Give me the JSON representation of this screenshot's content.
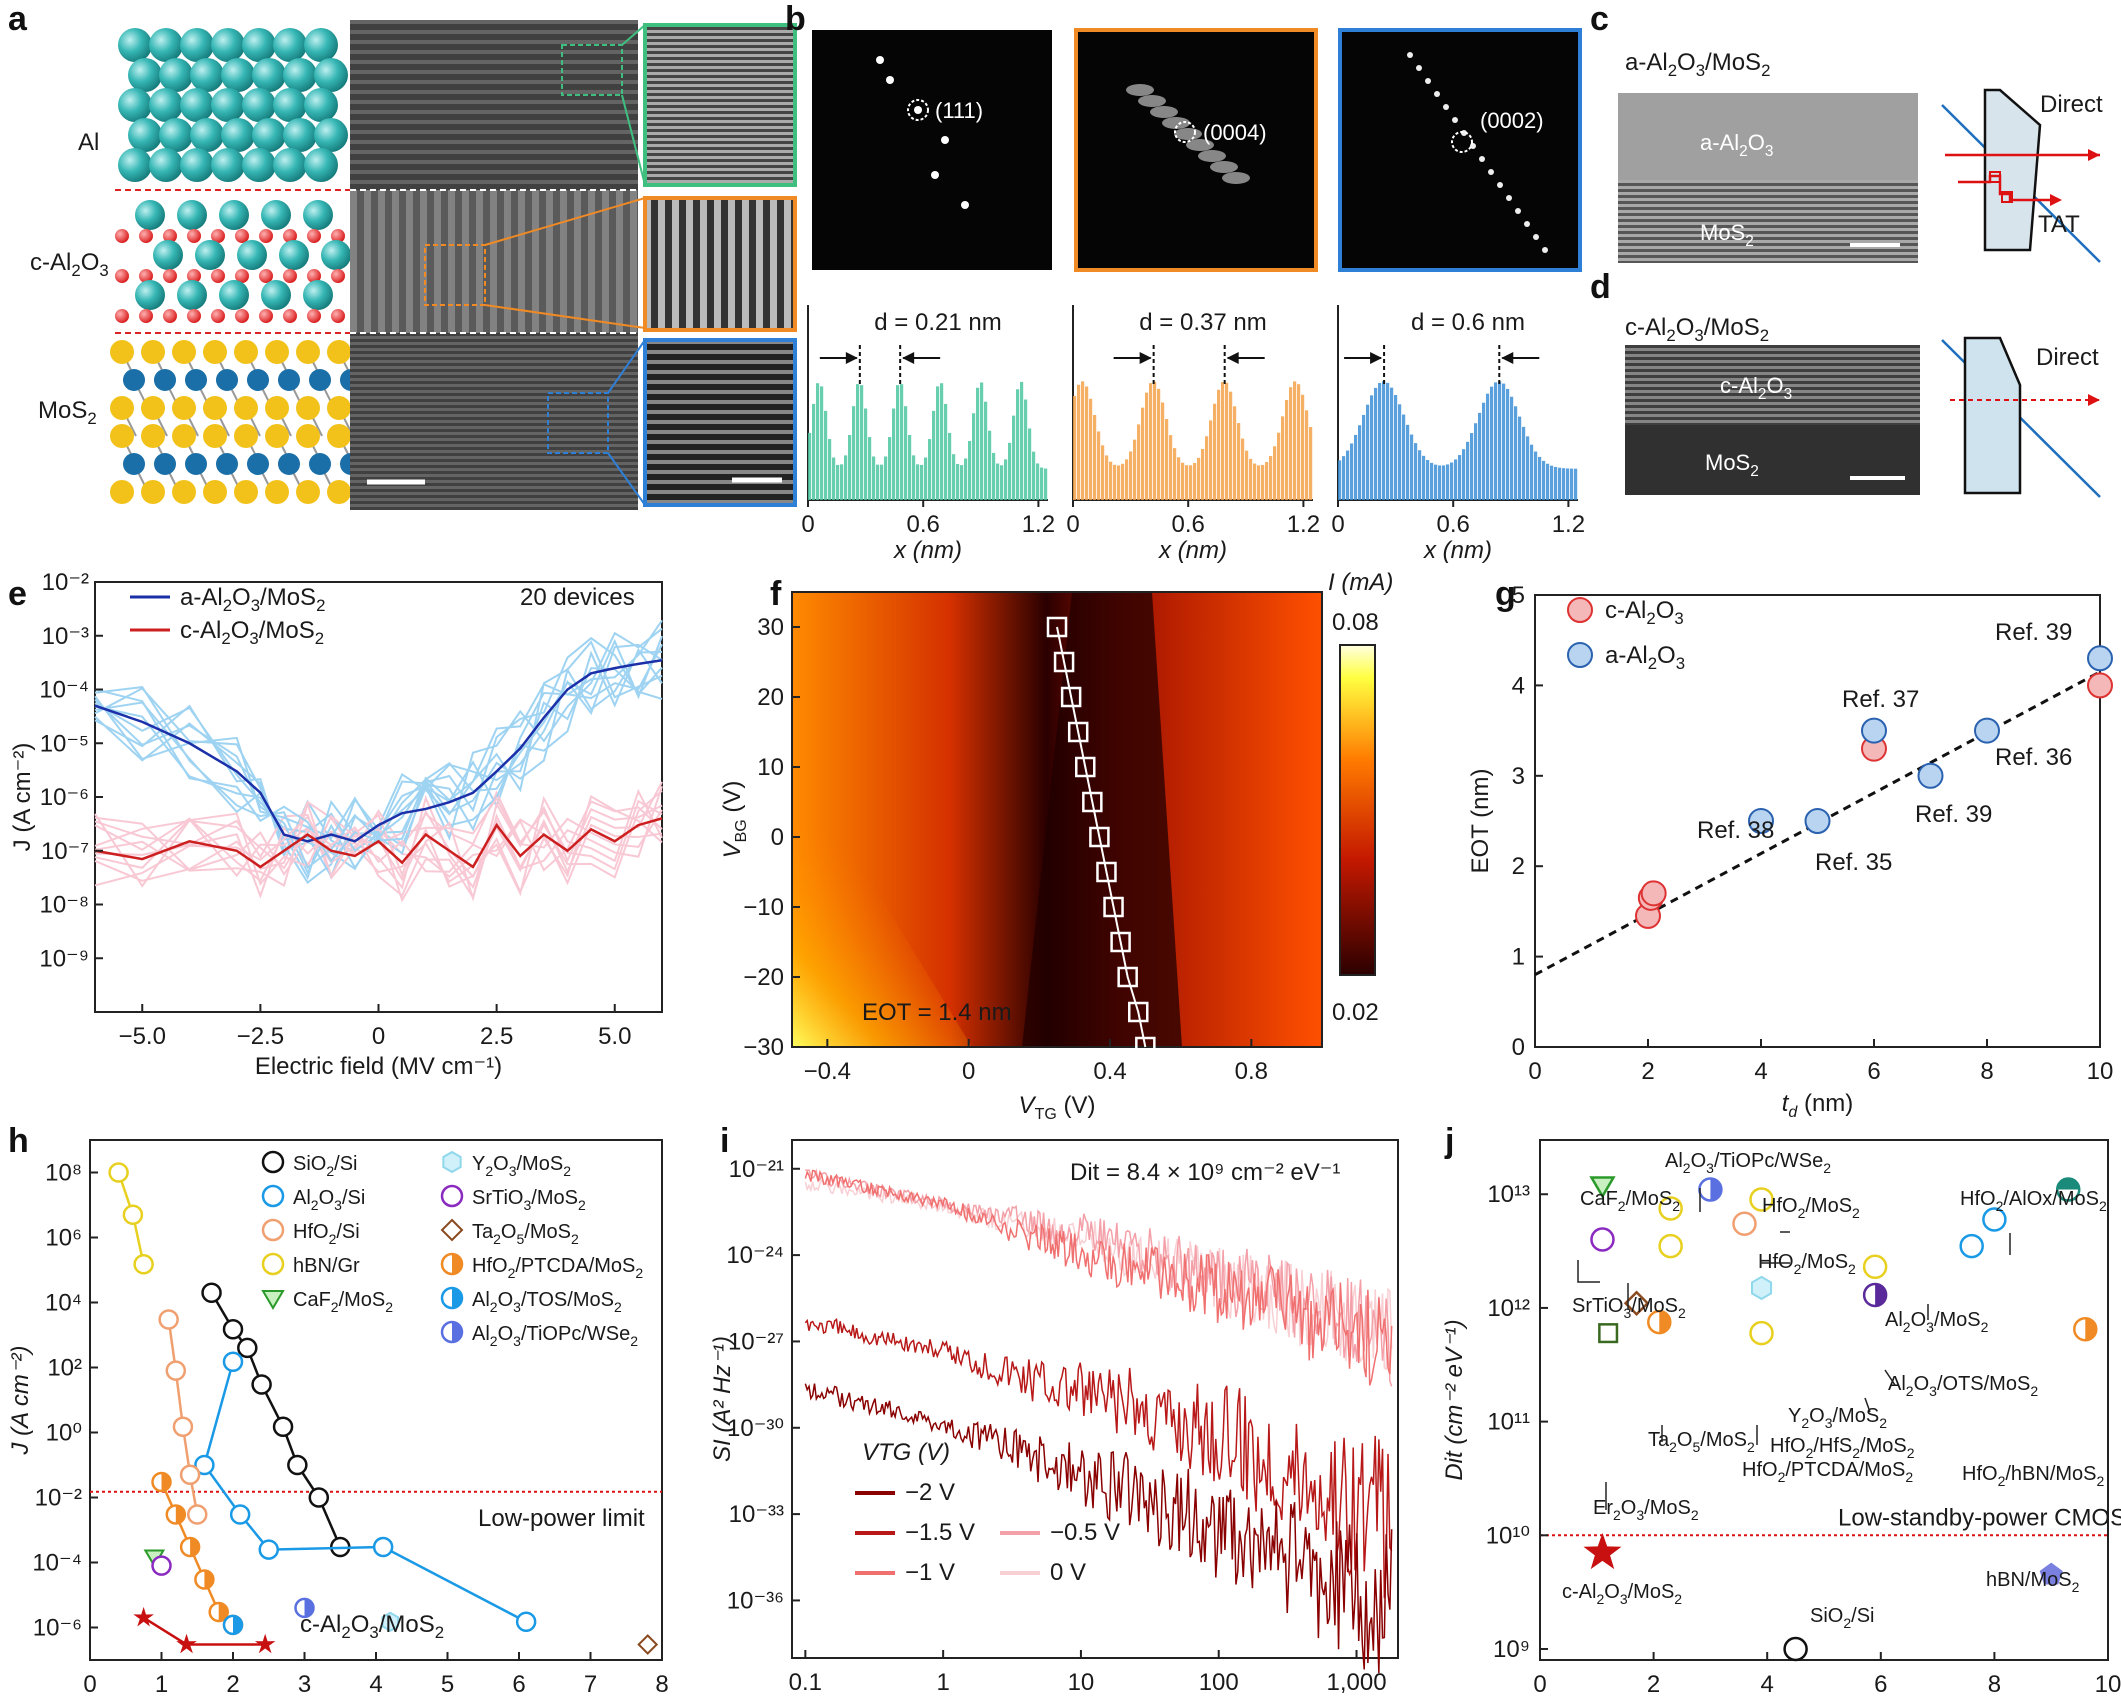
{
  "panels": {
    "a": {
      "label": "a",
      "layers": [
        "Al",
        "c-Al2O3",
        "MoS2"
      ],
      "layer_html": [
        "Al",
        "c-Al<tspan dy='6' font-size='16'>2</tspan><tspan dy='-6'>O</tspan><tspan dy='6' font-size='16'>3</tspan>",
        "MoS<tspan dy='6' font-size='16'>2</tspan>"
      ]
    },
    "b": {
      "label": "b",
      "fft_labels": [
        "(111)",
        "(0004)",
        "(0002)"
      ],
      "d_labels": [
        "d = 0.21 nm",
        "d = 0.37 nm",
        "d = 0.6 nm"
      ],
      "xlabel": "x (nm)",
      "xticks": [
        "0",
        "0.6",
        "1.2"
      ],
      "colors": [
        "#4cc6a0",
        "#f5a24a",
        "#3d8fd6"
      ]
    },
    "c": {
      "label": "c",
      "title": "a-Al2O3/MoS2",
      "top_layer": "a-Al2O3",
      "bottom_layer": "MoS2",
      "direct": "Direct",
      "tat": "TAT"
    },
    "d": {
      "label": "d",
      "title": "c-Al2O3/MoS2",
      "top_layer": "c-Al2O3",
      "bottom_layer": "MoS2",
      "direct": "Direct"
    },
    "e": {
      "label": "e",
      "devices": "20 devices",
      "legend": [
        "a-Al2O3/MoS2",
        "c-Al2O3/MoS2"
      ],
      "xlabel": "Electric field (MV cm⁻¹)",
      "ylabel": "J (A cm⁻²)",
      "xticks": [
        "−5.0",
        "−2.5",
        "0",
        "2.5",
        "5.0"
      ],
      "yticks": [
        "10⁻²",
        "10⁻³",
        "10⁻⁴",
        "10⁻⁵",
        "10⁻⁶",
        "10⁻⁷",
        "10⁻⁸",
        "10⁻⁹"
      ],
      "colors": {
        "a": "#1a2fa8",
        "a_light": "#9fd3f2",
        "c": "#cc1f1f",
        "c_light": "#f8c9d4"
      }
    },
    "f": {
      "label": "f",
      "annotation": "EOT = 1.4 nm",
      "colorbar_title": "I (mA)",
      "colorbar_max": "0.08",
      "colorbar_min": "0.02",
      "xlabel": "VTG (V)",
      "ylabel": "VBG (V)",
      "xticks": [
        "−0.4",
        "0",
        "0.4",
        "0.8"
      ],
      "yticks": [
        "30",
        "20",
        "10",
        "0",
        "−10",
        "−20",
        "−30"
      ]
    },
    "g": {
      "label": "g",
      "legend": [
        "c-Al2O3",
        "a-Al2O3"
      ],
      "refs": [
        "Ref. 39",
        "Ref. 37",
        "Ref. 36",
        "Ref. 38",
        "Ref. 39",
        "Ref. 35"
      ],
      "xlabel": "td (nm)",
      "ylabel": "EOT (nm)",
      "xticks": [
        "0",
        "2",
        "4",
        "6",
        "8",
        "10"
      ],
      "yticks": [
        "0",
        "1",
        "2",
        "3",
        "4",
        "5"
      ]
    },
    "h": {
      "label": "h",
      "xlabel": "EOT (nm)",
      "ylabel": "J (A cm⁻²)",
      "xticks": [
        "0",
        "1",
        "2",
        "3",
        "4",
        "5",
        "6",
        "7",
        "8"
      ],
      "yticks": [
        "10⁸",
        "10⁶",
        "10⁴",
        "10²",
        "10⁰",
        "10⁻²",
        "10⁻⁴",
        "10⁻⁶"
      ],
      "limit_label": "Low-power limit",
      "star_label": "c-Al2O3/MoS2",
      "legend": [
        "SiO2/Si",
        "Al2O3/Si",
        "HfO2/Si",
        "hBN/Gr",
        "CaF2/MoS2",
        "Y2O3/MoS2",
        "SrTiO3/MoS2",
        "Ta2O5/MoS2",
        "HfO2/PTCDA/MoS2",
        "Al2O3/TOS/MoS2",
        "Al2O3/TiOPc/WSe2"
      ]
    },
    "i": {
      "label": "i",
      "title": "Dit = 8.4 × 10⁹ cm⁻² eV⁻¹",
      "xlabel": "Frequency (Hz)",
      "ylabel": "SI (A² Hz⁻¹)",
      "xticks": [
        "0.1",
        "1",
        "10",
        "100",
        "1,000"
      ],
      "yticks": [
        "10⁻²¹",
        "10⁻²⁴",
        "10⁻²⁷",
        "10⁻³⁰",
        "10⁻³³",
        "10⁻³⁶"
      ],
      "legend_title": "VTG (V)",
      "legend": [
        "−2 V",
        "−1.5 V",
        "−1 V",
        "−0.5 V",
        "0 V"
      ]
    },
    "j": {
      "label": "j",
      "xlabel": "EOT (nm)",
      "ylabel": "Dit (cm⁻² eV⁻¹)",
      "xticks": [
        "0",
        "2",
        "4",
        "6",
        "8",
        "10"
      ],
      "yticks": [
        "10¹³",
        "10¹²",
        "10¹¹",
        "10¹⁰",
        "10⁹"
      ],
      "limit_label": "Low-standby-power CMOS",
      "labels": [
        "CaF2/MoS2",
        "Al2O3/TiOPc/WSe2",
        "HfO2/MoS2",
        "HfO2/MoS2",
        "HfO2/AlOx/MoS2",
        "SrTiO3/MoS2",
        "Al2O3/MoS2",
        "Al2O3/OTS/MoS2",
        "Y2O3/MoS2",
        "Ta2O5/MoS2",
        "HfO2/HfS2/MoS2",
        "HfO2/PTCDA/MoS2",
        "HfO2/hBN/MoS2",
        "Er2O3/MoS2",
        "c-Al2O3/MoS2",
        "hBN/MoS2",
        "SiO2/Si"
      ]
    }
  },
  "chart_data": [
    {
      "id": "b",
      "type": "bar",
      "xlabel": "x (nm)",
      "xlim": [
        0,
        1.25
      ],
      "series": [
        {
          "name": "c-Al2O3 (green)",
          "period_nm": 0.21,
          "peaks_nm": [
            0.06,
            0.27,
            0.48,
            0.69,
            0.9,
            1.11
          ]
        },
        {
          "name": "c-Al2O3 (orange)",
          "period_nm": 0.37,
          "peaks_nm": [
            0.05,
            0.42,
            0.79,
            1.16
          ]
        },
        {
          "name": "MoS2 (blue)",
          "period_nm": 0.6,
          "peaks_nm": [
            0.24,
            0.84
          ]
        }
      ]
    },
    {
      "id": "e",
      "type": "line",
      "yscale": "log",
      "xlabel": "Electric field (MV cm⁻¹)",
      "ylabel": "J (A cm⁻²)",
      "xlim": [
        -6,
        6
      ],
      "ylim": [
        1e-10,
        0.01
      ],
      "series": [
        {
          "name": "a-Al2O3/MoS2",
          "x": [
            -6,
            -5,
            -4,
            -3,
            -2.5,
            -2,
            -1.5,
            -1,
            -0.5,
            0,
            0.5,
            1,
            1.5,
            2,
            2.5,
            3,
            3.5,
            4,
            4.5,
            5,
            5.5,
            6
          ],
          "y": [
            5e-05,
            2.5e-05,
            1e-05,
            3e-06,
            1.2e-06,
            2e-07,
            1.5e-07,
            2e-07,
            1.5e-07,
            3e-07,
            5e-07,
            6e-07,
            8e-07,
            1.2e-06,
            3e-06,
            8e-06,
            3e-05,
            0.0001,
            0.0002,
            0.00025,
            0.0003,
            0.00035
          ]
        },
        {
          "name": "c-Al2O3/MoS2",
          "x": [
            -6,
            -5,
            -4,
            -3,
            -2.5,
            -2,
            -1.5,
            -1,
            -0.5,
            0,
            0.5,
            1,
            1.5,
            2,
            2.5,
            3,
            3.5,
            4,
            4.5,
            5,
            5.5,
            6
          ],
          "y": [
            1e-07,
            7e-08,
            1.5e-07,
            1e-07,
            5e-08,
            1e-07,
            2e-07,
            1e-07,
            8e-08,
            1.5e-07,
            6e-08,
            2e-07,
            1e-07,
            5e-08,
            3e-07,
            8e-08,
            2e-07,
            1e-07,
            2.5e-07,
            1.5e-07,
            3e-07,
            4e-07
          ]
        }
      ]
    },
    {
      "id": "f",
      "type": "heatmap",
      "xlabel": "VTG (V)",
      "ylabel": "VBG (V)",
      "xlim": [
        -0.5,
        1.0
      ],
      "ylim": [
        -30,
        35
      ],
      "colorbar": {
        "label": "I (mA)",
        "min": 0.02,
        "max": 0.08
      },
      "minimum_line": {
        "x": [
          0.5,
          0.48,
          0.45,
          0.43,
          0.41,
          0.39,
          0.37,
          0.35,
          0.33,
          0.31,
          0.29,
          0.27,
          0.25
        ],
        "y": [
          -30,
          -25,
          -20,
          -15,
          -10,
          -5,
          0,
          5,
          10,
          15,
          20,
          25,
          30
        ]
      }
    },
    {
      "id": "g",
      "type": "scatter",
      "xlabel": "td (nm)",
      "ylabel": "EOT (nm)",
      "xlim": [
        0,
        10
      ],
      "ylim": [
        0,
        5
      ],
      "series": [
        {
          "name": "c-Al2O3",
          "x": [
            2,
            2.05,
            2.1,
            6,
            10
          ],
          "y": [
            1.45,
            1.65,
            1.7,
            3.3,
            4.0
          ]
        },
        {
          "name": "a-Al2O3",
          "x": [
            4,
            5,
            6,
            7,
            8,
            10
          ],
          "y": [
            2.5,
            2.5,
            3.5,
            3.0,
            3.5,
            4.3
          ]
        }
      ],
      "fit": {
        "x": [
          0,
          10
        ],
        "y": [
          0.8,
          4.15
        ]
      }
    },
    {
      "id": "h",
      "type": "scatter",
      "yscale": "log",
      "xlabel": "EOT (nm)",
      "ylabel": "J (A cm⁻²)",
      "xlim": [
        0,
        8
      ],
      "ylim": [
        1e-07,
        1000000000.0
      ],
      "limit": 0.015,
      "series": [
        {
          "name": "SiO2/Si",
          "x": [
            1.7,
            2.0,
            2.2,
            2.4,
            2.7,
            2.9,
            3.2,
            3.5
          ],
          "y": [
            20000,
            1500,
            400,
            30,
            1.5,
            0.1,
            0.01,
            0.0003
          ]
        },
        {
          "name": "Al2O3/Si",
          "x": [
            2.0,
            1.6,
            2.1,
            2.5,
            4.1,
            6.1
          ],
          "y": [
            150,
            0.1,
            0.003,
            0.00025,
            0.0003,
            1.5e-06
          ]
        },
        {
          "name": "HfO2/Si",
          "x": [
            1.1,
            1.2,
            1.3,
            1.4,
            1.5
          ],
          "y": [
            3000,
            80,
            1.5,
            0.05,
            0.003
          ]
        },
        {
          "name": "hBN/Gr",
          "x": [
            0.4,
            0.6,
            0.75
          ],
          "y": [
            100000000.0,
            5000000.0,
            150000.0
          ]
        },
        {
          "name": "HfO2/PTCDA/MoS2",
          "x": [
            1.0,
            1.2,
            1.4,
            1.6,
            1.8,
            2.0
          ],
          "y": [
            0.03,
            0.003,
            0.0003,
            3e-05,
            3e-06,
            1.2e-06
          ]
        },
        {
          "name": "CaF2/MoS2",
          "x": [
            0.9
          ],
          "y": [
            0.00015
          ]
        },
        {
          "name": "SrTiO3/MoS2",
          "x": [
            1.0
          ],
          "y": [
            8e-05
          ]
        },
        {
          "name": "Al2O3/TOS/MoS2",
          "x": [
            2.0
          ],
          "y": [
            1.2e-06
          ]
        },
        {
          "name": "Al2O3/TiOPc/WSe2",
          "x": [
            3.0
          ],
          "y": [
            4e-06
          ]
        },
        {
          "name": "Y2O3/MoS2",
          "x": [
            4.2
          ],
          "y": [
            1.5e-06
          ]
        },
        {
          "name": "Ta2O5/MoS2",
          "x": [
            7.8
          ],
          "y": [
            3e-07
          ]
        },
        {
          "name": "c-Al2O3/MoS2",
          "x": [
            0.75,
            1.35,
            2.45
          ],
          "y": [
            2e-06,
            3e-07,
            3e-07
          ]
        }
      ]
    },
    {
      "id": "i",
      "type": "line",
      "xscale": "log",
      "yscale": "log",
      "xlabel": "Frequency (Hz)",
      "ylabel": "SI (A² Hz⁻¹)",
      "xlim": [
        0.08,
        2000
      ],
      "ylim": [
        1e-38,
        1e-20
      ],
      "series": [
        {
          "name": "−2 V",
          "x": [
            0.1,
            1,
            10,
            100,
            1000
          ],
          "y": [
            5e-29,
            3e-30,
            3e-31,
            3e-32,
            1e-33
          ]
        },
        {
          "name": "−1.5 V",
          "x": [
            0.1,
            1,
            10,
            100,
            1000
          ],
          "y": [
            1e-26,
            1e-27,
            2e-28,
            5e-29,
            1e-30
          ]
        },
        {
          "name": "−1 V",
          "x": [
            0.1,
            1,
            10,
            100,
            1000
          ],
          "y": [
            1e-21,
            1e-22,
            5e-24,
            1e-24,
            1e-25
          ]
        },
        {
          "name": "−0.5 V",
          "x": [
            0.1,
            1,
            10,
            100,
            1000
          ],
          "y": [
            1e-21,
            1e-22,
            3e-23,
            3e-24,
            2e-25
          ]
        },
        {
          "name": "0 V",
          "x": [
            0.1,
            1,
            10,
            100,
            1000
          ],
          "y": [
            5e-22,
            8e-23,
            2e-23,
            2e-24,
            2e-25
          ]
        }
      ]
    },
    {
      "id": "j",
      "type": "scatter",
      "yscale": "log",
      "xlabel": "EOT (nm)",
      "ylabel": "Dit (cm⁻² eV⁻¹)",
      "xlim": [
        0,
        10
      ],
      "ylim": [
        800000000.0,
        30000000000000.0
      ],
      "limit": 10000000000.0,
      "points": [
        {
          "name": "CaF2/MoS2",
          "x": 1.1,
          "y": 12000000000000.0
        },
        {
          "name": "SrTiO3/MoS2",
          "x": 1.1,
          "y": 4000000000000.0
        },
        {
          "name": "Er2O3/MoS2",
          "x": 1.2,
          "y": 600000000000.0
        },
        {
          "name": "Ta2O5/MoS2",
          "x": 1.7,
          "y": 1100000000000.0
        },
        {
          "name": "HfO2/PTCDA/MoS2",
          "x": 2.1,
          "y": 750000000000.0
        },
        {
          "name": "hBN/Gr-like (yellow)",
          "x": 2.3,
          "y": 7500000000000.0
        },
        {
          "name": "Y2O3/MoS2 (yellow)",
          "x": 2.3,
          "y": 3500000000000.0
        },
        {
          "name": "Al2O3/TiOPc/WSe2",
          "x": 3.0,
          "y": 11000000000000.0
        },
        {
          "name": "HfO2/MoS2",
          "x": 3.6,
          "y": 5500000000000.0
        },
        {
          "name": "HfO2/MoS2",
          "x": 3.9,
          "y": 9000000000000.0
        },
        {
          "name": "Y2O3/MoS2",
          "x": 3.9,
          "y": 1500000000000.0
        },
        {
          "name": "HfO2/HfS2/MoS2",
          "x": 3.9,
          "y": 600000000000.0
        },
        {
          "name": "Al2O3/OTS/MoS2",
          "x": 5.9,
          "y": 2300000000000.0
        },
        {
          "name": "Al2O3/OTS/MoS2",
          "x": 5.9,
          "y": 1300000000000.0
        },
        {
          "name": "Al2O3/MoS2",
          "x": 7.6,
          "y": 3500000000000.0
        },
        {
          "name": "Al2O3/MoS2",
          "x": 8.0,
          "y": 6000000000000.0
        },
        {
          "name": "HfO2/AlOx/MoS2",
          "x": 9.3,
          "y": 11000000000000.0
        },
        {
          "name": "HfO2/hBN/MoS2",
          "x": 9.6,
          "y": 650000000000.0
        },
        {
          "name": "c-Al2O3/MoS2",
          "x": 1.1,
          "y": 7000000000.0
        },
        {
          "name": "hBN/MoS2",
          "x": 9.0,
          "y": 4500000000.0
        },
        {
          "name": "SiO2/Si",
          "x": 4.5,
          "y": 1000000000.0
        }
      ]
    }
  ]
}
